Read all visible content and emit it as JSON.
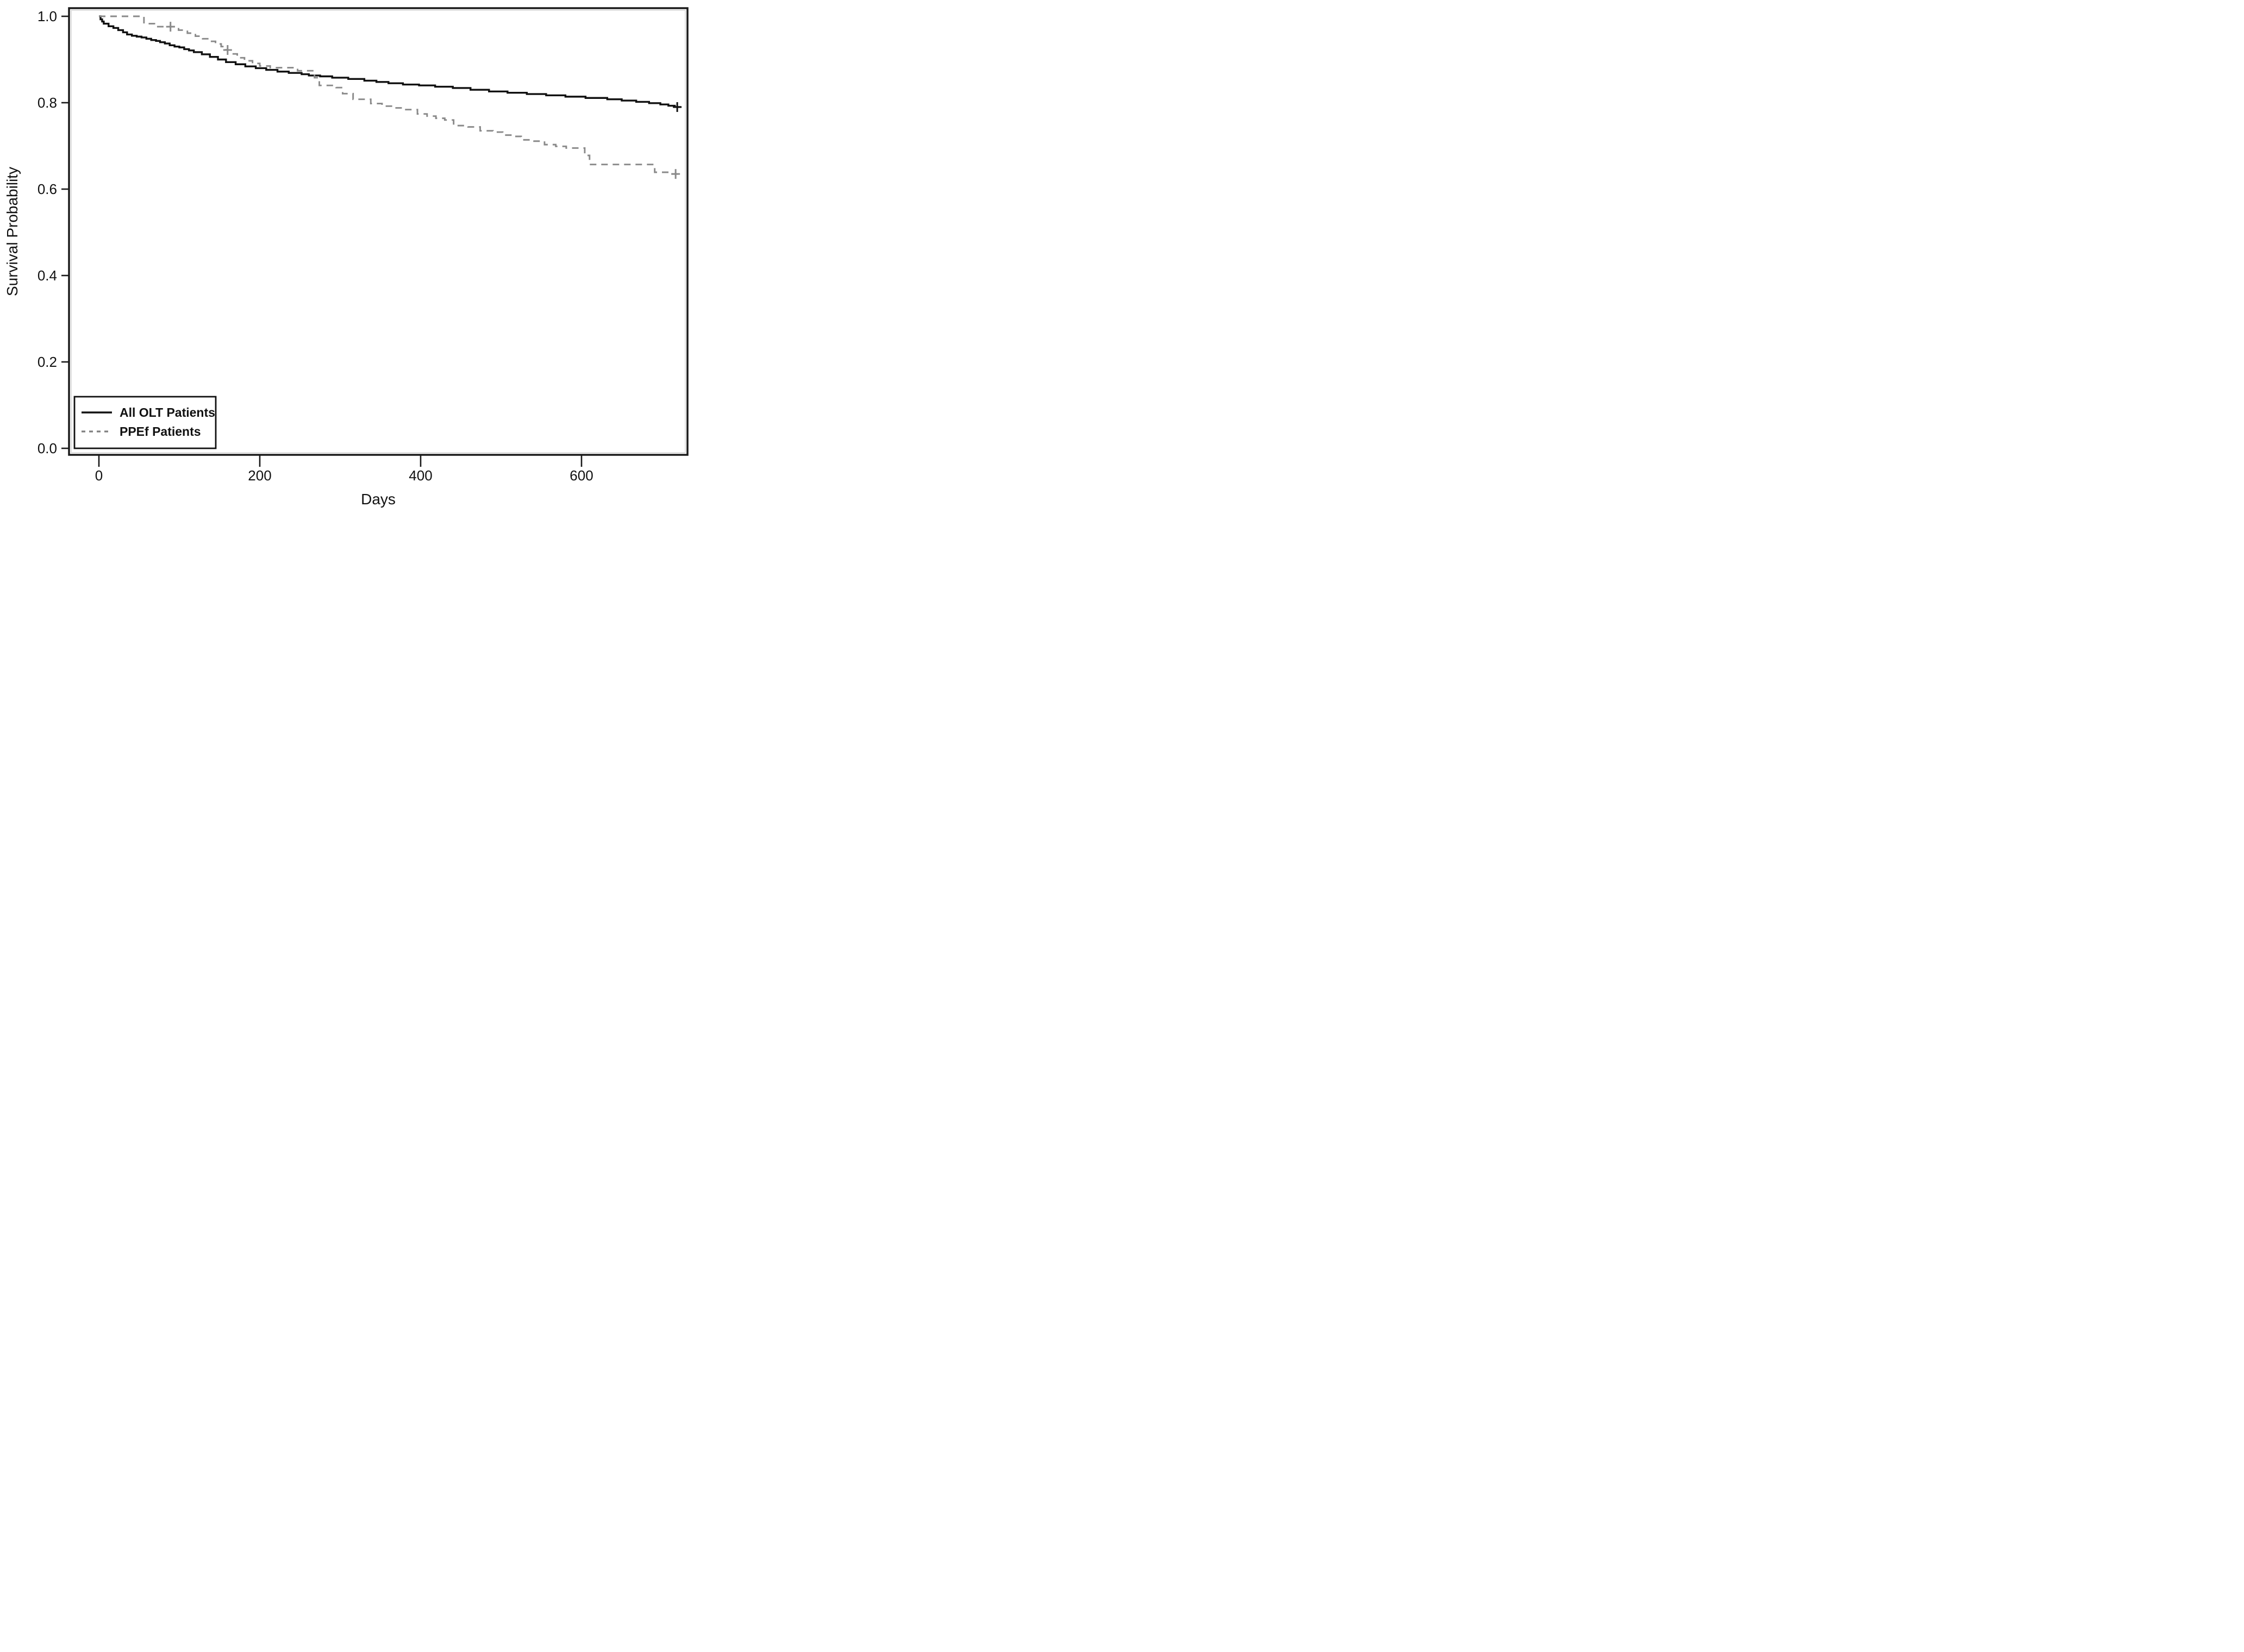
{
  "figure": {
    "background": "#ffffff",
    "frame_color": "#1a1a1a",
    "inner_shadow_color": "#b3b3b3"
  },
  "chart_data": {
    "type": "line",
    "subtype": "kaplan_meier_step",
    "title": "",
    "xlabel": "Days",
    "ylabel": "Survival Probability",
    "xlim": [
      -37,
      733
    ],
    "ylim": [
      -0.015,
      1.018
    ],
    "grid": false,
    "x_ticks": [
      {
        "label": "0",
        "value": 0
      },
      {
        "label": "200",
        "value": 200
      },
      {
        "label": "400",
        "value": 400
      },
      {
        "label": "600",
        "value": 600
      }
    ],
    "y_ticks": [
      {
        "label": "1.0",
        "value": 1.0
      },
      {
        "label": "0.8",
        "value": 0.8
      },
      {
        "label": "0.6",
        "value": 0.6
      },
      {
        "label": "0.4",
        "value": 0.4
      },
      {
        "label": "0.2",
        "value": 0.2
      },
      {
        "label": "0.0",
        "value": 0.0
      }
    ],
    "legend": {
      "position": "bottom-left",
      "items": [
        {
          "label": "All OLT Patients",
          "style": "solid",
          "color": "#111111"
        },
        {
          "label": "PPEf Patients",
          "style": "dashed",
          "color": "#7f7f7f"
        }
      ]
    },
    "series": [
      {
        "name": "All OLT Patients",
        "style": "solid",
        "color": "#111111",
        "width": 3.4,
        "end_day": 724,
        "censors": [
          [
            719,
            0.79
          ]
        ],
        "points": [
          [
            0,
            1.0
          ],
          [
            2,
            0.993
          ],
          [
            4,
            0.988
          ],
          [
            6,
            0.983
          ],
          [
            12,
            0.977
          ],
          [
            18,
            0.973
          ],
          [
            24,
            0.968
          ],
          [
            30,
            0.963
          ],
          [
            35,
            0.958
          ],
          [
            41,
            0.955
          ],
          [
            47,
            0.953
          ],
          [
            53,
            0.951
          ],
          [
            59,
            0.948
          ],
          [
            65,
            0.945
          ],
          [
            71,
            0.943
          ],
          [
            76,
            0.94
          ],
          [
            82,
            0.937
          ],
          [
            88,
            0.933
          ],
          [
            94,
            0.93
          ],
          [
            100,
            0.928
          ],
          [
            106,
            0.924
          ],
          [
            112,
            0.921
          ],
          [
            118,
            0.917
          ],
          [
            128,
            0.912
          ],
          [
            138,
            0.906
          ],
          [
            148,
            0.9
          ],
          [
            158,
            0.894
          ],
          [
            170,
            0.889
          ],
          [
            182,
            0.884
          ],
          [
            195,
            0.88
          ],
          [
            208,
            0.876
          ],
          [
            222,
            0.872
          ],
          [
            236,
            0.869
          ],
          [
            252,
            0.866
          ],
          [
            261,
            0.863
          ],
          [
            275,
            0.861
          ],
          [
            290,
            0.858
          ],
          [
            310,
            0.855
          ],
          [
            330,
            0.851
          ],
          [
            345,
            0.848
          ],
          [
            360,
            0.845
          ],
          [
            378,
            0.842
          ],
          [
            398,
            0.84
          ],
          [
            418,
            0.837
          ],
          [
            440,
            0.834
          ],
          [
            462,
            0.83
          ],
          [
            485,
            0.826
          ],
          [
            508,
            0.823
          ],
          [
            532,
            0.82
          ],
          [
            556,
            0.817
          ],
          [
            580,
            0.814
          ],
          [
            605,
            0.811
          ],
          [
            632,
            0.808
          ],
          [
            650,
            0.805
          ],
          [
            668,
            0.802
          ],
          [
            684,
            0.799
          ],
          [
            698,
            0.796
          ],
          [
            708,
            0.793
          ],
          [
            716,
            0.79
          ]
        ]
      },
      {
        "name": "PPEf Patients",
        "style": "dashed",
        "color": "#8a8a8a",
        "width": 2.9,
        "dash": [
          12,
          9
        ],
        "end_day": 724,
        "censors": [
          [
            89,
            0.976
          ],
          [
            160,
            0.922
          ],
          [
            717,
            0.635
          ]
        ],
        "points": [
          [
            0,
            1.0
          ],
          [
            56,
            0.983
          ],
          [
            69,
            0.976
          ],
          [
            99,
            0.968
          ],
          [
            110,
            0.961
          ],
          [
            120,
            0.954
          ],
          [
            129,
            0.948
          ],
          [
            137,
            0.942
          ],
          [
            145,
            0.936
          ],
          [
            152,
            0.93
          ],
          [
            158,
            0.922
          ],
          [
            166,
            0.913
          ],
          [
            172,
            0.904
          ],
          [
            181,
            0.897
          ],
          [
            191,
            0.891
          ],
          [
            200,
            0.885
          ],
          [
            213,
            0.881
          ],
          [
            247,
            0.874
          ],
          [
            268,
            0.858
          ],
          [
            274,
            0.84
          ],
          [
            295,
            0.835
          ],
          [
            303,
            0.821
          ],
          [
            316,
            0.808
          ],
          [
            338,
            0.798
          ],
          [
            352,
            0.792
          ],
          [
            367,
            0.788
          ],
          [
            380,
            0.784
          ],
          [
            396,
            0.774
          ],
          [
            408,
            0.769
          ],
          [
            419,
            0.764
          ],
          [
            430,
            0.76
          ],
          [
            441,
            0.747
          ],
          [
            459,
            0.744
          ],
          [
            474,
            0.735
          ],
          [
            490,
            0.732
          ],
          [
            502,
            0.725
          ],
          [
            515,
            0.722
          ],
          [
            525,
            0.714
          ],
          [
            541,
            0.711
          ],
          [
            554,
            0.703
          ],
          [
            568,
            0.699
          ],
          [
            581,
            0.695
          ],
          [
            604,
            0.678
          ],
          [
            610,
            0.657
          ],
          [
            691,
            0.639
          ],
          [
            710,
            0.635
          ]
        ]
      }
    ]
  }
}
